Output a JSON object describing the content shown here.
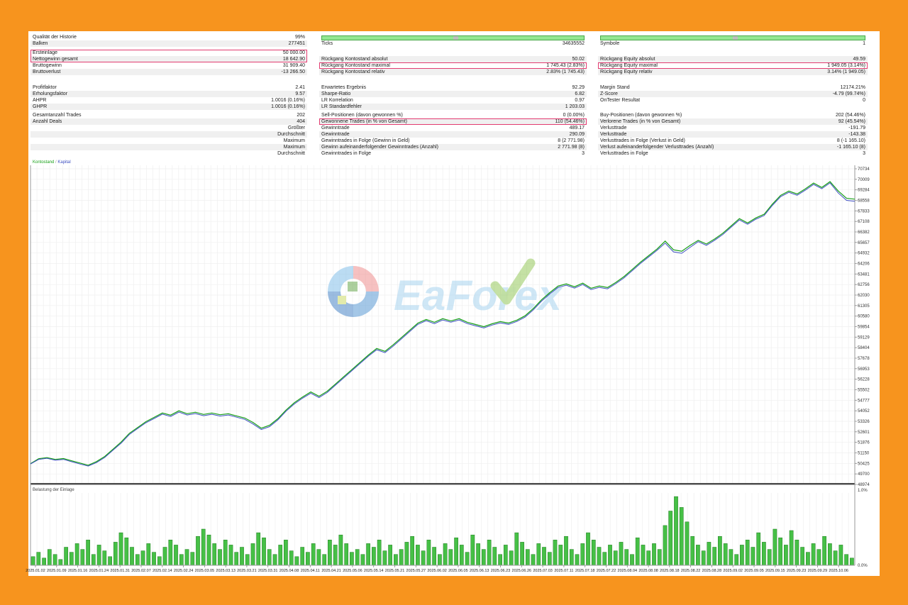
{
  "app": {
    "watermark": "EaForex",
    "frame_color": "#F7941E",
    "highlight_color": "#e23b70"
  },
  "stats": {
    "progress_bar": {
      "color": "#92e692",
      "notch_position_pct": 50
    },
    "left": [
      {
        "l": "Qualität der Historie",
        "v": "99%"
      },
      {
        "l": "Balken",
        "v": "277451",
        "s": 1
      },
      {
        "sp": 4
      },
      {
        "l": "Ersteinlage",
        "v": "50 000.00",
        "hl": "start"
      },
      {
        "l": "Nettogewinn gesamt",
        "v": "18 642.90",
        "s": 1,
        "hl": "end"
      },
      {
        "l": "Bruttogewinn",
        "v": "31 909.40"
      },
      {
        "l": "Bruttoverlust",
        "v": "-13 266.50",
        "s": 1
      },
      {
        "sp": 13
      },
      {
        "l": "Profitfaktor",
        "v": "2.41"
      },
      {
        "l": "Erholungsfaktor",
        "v": "9.57",
        "s": 1
      },
      {
        "l": "AHPR",
        "v": "1.0016 (0.16%)"
      },
      {
        "l": "GHPR",
        "v": "1.0016 (0.16%)",
        "s": 1
      },
      {
        "sp": 3
      },
      {
        "l": "Gesamtanzahl Trades",
        "v": "202"
      },
      {
        "l": "Anzahl Deals",
        "v": "404",
        "s": 1
      },
      {
        "r": "Größter"
      },
      {
        "r": "Durchschnitt",
        "s": 1
      },
      {
        "r": "Maximum"
      },
      {
        "r": "Maximum",
        "s": 1
      },
      {
        "r": "Durchschnitt"
      }
    ],
    "middle": [
      {
        "bar": true
      },
      {
        "l": "Ticks",
        "v": "34635552"
      },
      {
        "sp": 13
      },
      {
        "l": "Rückgang Kontostand absolut",
        "v": "50.02",
        "s": 1
      },
      {
        "l": "Rückgang Kontostand maximal",
        "v": "1 745.43 (2.83%)",
        "hl": "solo"
      },
      {
        "l": "Rückgang Kontostand relativ",
        "v": "2.83% (1 745.43)",
        "s": 1
      },
      {
        "sp": 13
      },
      {
        "l": "Erwartetes Ergebnis",
        "v": "92.29"
      },
      {
        "l": "Sharpe-Ratio",
        "v": "6.82",
        "s": 1
      },
      {
        "l": "LR Korrelation",
        "v": "0.97"
      },
      {
        "l": "LR Standardfehler",
        "v": "1 203.03",
        "s": 1
      },
      {
        "sp": 3
      },
      {
        "l": "Sell-Positionen (davon gewonnen %)",
        "v": "0 (0.00%)"
      },
      {
        "l": "Gewonnene Trades (in % von Gesamt)",
        "v": "110 (54.46%)",
        "s": 1,
        "hl": "solo"
      },
      {
        "l": "Gewinntrade",
        "v": "489.17"
      },
      {
        "l": "Gewinntrade",
        "v": "290.09",
        "s": 1
      },
      {
        "l": "Gewinntrades in Folge (Gewinn in Geld)",
        "v": "8 (2 771.98)"
      },
      {
        "l": "Gewinn aufeinanderfolgender Gewinntrades (Anzahl)",
        "v": "2 771.98 (8)",
        "s": 1
      },
      {
        "l": "Gewinntrades in Folge",
        "v": "3"
      }
    ],
    "right": [
      {
        "bar": true
      },
      {
        "l": "Symbole",
        "v": "1"
      },
      {
        "sp": 13
      },
      {
        "l": "Rückgang Equity absolut",
        "v": "49.59",
        "s": 1
      },
      {
        "l": "Rückgang Equity maximal",
        "v": "1 949.05 (3.14%)",
        "hl": "solo"
      },
      {
        "l": "Rückgang Equity relativ",
        "v": "3.14% (1 949.05)",
        "s": 1
      },
      {
        "sp": 13
      },
      {
        "l": "Margin Stand",
        "v": "12174.21%"
      },
      {
        "l": "Z-Score",
        "v": "-4.79 (99.74%)",
        "s": 1
      },
      {
        "l": "OnTester Resultat",
        "v": "0"
      },
      {
        "sp": 12
      },
      {
        "l": "Buy-Positionen (davon gewonnen %)",
        "v": "202 (54.46%)"
      },
      {
        "l": "Verlorene Trades (in % von Gesamt)",
        "v": "92 (45.54%)",
        "s": 1
      },
      {
        "l": "Verlusttrade",
        "v": "-191.79"
      },
      {
        "l": "Verlusttrade",
        "v": "-143.38",
        "s": 1
      },
      {
        "l": "Verlusttrades in Folge (Verlust in Geld)",
        "v": "8 (-1 165.10)"
      },
      {
        "l": "Verlust aufeinanderfolgender Verlusttrades (Anzahl)",
        "v": "-1 165.10 (8)",
        "s": 1
      },
      {
        "l": "Verlusttrades in Folge",
        "v": "3"
      }
    ]
  },
  "chart_data": {
    "type": "line",
    "title": "Kontostand / Kapital",
    "ylim": [
      48974,
      70734
    ],
    "grid": true,
    "legend_position": "top-left",
    "series": [
      {
        "name": "Kontostand",
        "color": "#18a018",
        "values": [
          50400,
          50750,
          50820,
          50700,
          50760,
          50600,
          50450,
          50300,
          50550,
          50900,
          51400,
          51900,
          52500,
          52900,
          53300,
          53600,
          53900,
          53750,
          54050,
          53850,
          53950,
          53800,
          53900,
          53780,
          53850,
          53700,
          53550,
          53250,
          52850,
          53050,
          53500,
          54100,
          54600,
          55000,
          55350,
          55050,
          55400,
          55900,
          56400,
          56900,
          57400,
          57900,
          58350,
          58150,
          58600,
          59100,
          59600,
          60100,
          60350,
          60150,
          60400,
          60250,
          60400,
          60150,
          60000,
          59850,
          60050,
          60200,
          60100,
          60300,
          60600,
          61100,
          61700,
          62200,
          62650,
          62800,
          62600,
          62850,
          62500,
          62650,
          62550,
          62900,
          63300,
          63800,
          64300,
          64750,
          65200,
          65750,
          65150,
          65050,
          65450,
          65800,
          65550,
          65900,
          66300,
          66800,
          67300,
          67000,
          67350,
          67600,
          68300,
          68900,
          69200,
          69000,
          69350,
          69750,
          69450,
          69850,
          69200,
          68700,
          68640
        ]
      },
      {
        "name": "Kapital",
        "color": "#3c4ec0",
        "values": [
          50380,
          50700,
          50780,
          50640,
          50700,
          50540,
          50380,
          50240,
          50480,
          50830,
          51330,
          51820,
          52420,
          52830,
          53230,
          53520,
          53820,
          53660,
          53960,
          53760,
          53860,
          53710,
          53810,
          53690,
          53760,
          53610,
          53460,
          53140,
          52760,
          52960,
          53420,
          54020,
          54520,
          54920,
          55260,
          54960,
          55310,
          55820,
          56320,
          56820,
          57320,
          57820,
          58260,
          58060,
          58510,
          59010,
          59510,
          60010,
          60260,
          60060,
          60310,
          60160,
          60310,
          60060,
          59910,
          59760,
          59960,
          60110,
          60010,
          60210,
          60510,
          61010,
          61610,
          62110,
          62560,
          62710,
          62510,
          62760,
          62410,
          62560,
          62460,
          62810,
          63210,
          63710,
          64210,
          64660,
          65110,
          65610,
          65010,
          64910,
          65310,
          65710,
          65460,
          65810,
          66210,
          66710,
          67210,
          66910,
          67260,
          67510,
          68210,
          68810,
          69110,
          68910,
          69260,
          69660,
          69360,
          69760,
          69060,
          68560,
          68500
        ]
      }
    ],
    "y_ticks": [
      70734,
      70009,
      69284,
      68558,
      67833,
      67108,
      66382,
      65657,
      64932,
      64206,
      63481,
      62756,
      62030,
      61305,
      60580,
      59854,
      59129,
      58404,
      57678,
      56953,
      56228,
      55502,
      54777,
      54052,
      53326,
      52601,
      51876,
      51150,
      50425,
      49700,
      48974
    ],
    "x_ticks": [
      "2025.01.02",
      "2025.01.09",
      "2025.01.16",
      "2025.01.24",
      "2025.01.31",
      "2025.02.07",
      "2025.02.14",
      "2025.02.24",
      "2025.03.05",
      "2025.03.13",
      "2025.03.21",
      "2025.03.31",
      "2025.04.08",
      "2025.04.11",
      "2025.04.21",
      "2025.05.06",
      "2025.05.14",
      "2025.05.21",
      "2025.05.27",
      "2025.06.02",
      "2025.06.05",
      "2025.06.13",
      "2025.06.23",
      "2025.06.26",
      "2025.07.03",
      "2025.07.11",
      "2025.07.18",
      "2025.07.22",
      "2025.08.04",
      "2025.08.08",
      "2025.08.18",
      "2025.08.22",
      "2025.08.28",
      "2025.09.02",
      "2025.09.05",
      "2025.09.15",
      "2025.09.23",
      "2025.09.29",
      "2025.10.06"
    ],
    "histogram": {
      "label": "Belastung der Einlage",
      "max_label": "1.0%",
      "min_label": "0.0%",
      "unit": "%",
      "values": [
        0.12,
        0.18,
        0.1,
        0.22,
        0.15,
        0.08,
        0.25,
        0.18,
        0.3,
        0.22,
        0.35,
        0.15,
        0.28,
        0.2,
        0.12,
        0.32,
        0.45,
        0.38,
        0.25,
        0.15,
        0.2,
        0.3,
        0.18,
        0.12,
        0.25,
        0.35,
        0.28,
        0.15,
        0.22,
        0.18,
        0.4,
        0.5,
        0.42,
        0.3,
        0.22,
        0.35,
        0.28,
        0.18,
        0.25,
        0.15,
        0.3,
        0.45,
        0.38,
        0.22,
        0.15,
        0.28,
        0.35,
        0.2,
        0.12,
        0.25,
        0.18,
        0.3,
        0.22,
        0.15,
        0.35,
        0.28,
        0.42,
        0.3,
        0.18,
        0.22,
        0.15,
        0.3,
        0.25,
        0.35,
        0.2,
        0.28,
        0.15,
        0.22,
        0.32,
        0.4,
        0.28,
        0.2,
        0.35,
        0.25,
        0.15,
        0.3,
        0.22,
        0.38,
        0.28,
        0.18,
        0.42,
        0.3,
        0.22,
        0.35,
        0.25,
        0.15,
        0.28,
        0.2,
        0.45,
        0.32,
        0.22,
        0.15,
        0.3,
        0.25,
        0.18,
        0.35,
        0.28,
        0.4,
        0.22,
        0.15,
        0.3,
        0.45,
        0.35,
        0.25,
        0.18,
        0.28,
        0.2,
        0.32,
        0.22,
        0.15,
        0.38,
        0.28,
        0.2,
        0.3,
        0.22,
        0.55,
        0.75,
        0.95,
        0.8,
        0.6,
        0.4,
        0.28,
        0.2,
        0.32,
        0.25,
        0.4,
        0.3,
        0.22,
        0.15,
        0.28,
        0.35,
        0.25,
        0.45,
        0.32,
        0.22,
        0.5,
        0.38,
        0.28,
        0.48,
        0.35,
        0.25,
        0.18,
        0.3,
        0.22,
        0.4,
        0.3,
        0.2,
        0.28,
        0.15,
        0.1
      ]
    }
  }
}
